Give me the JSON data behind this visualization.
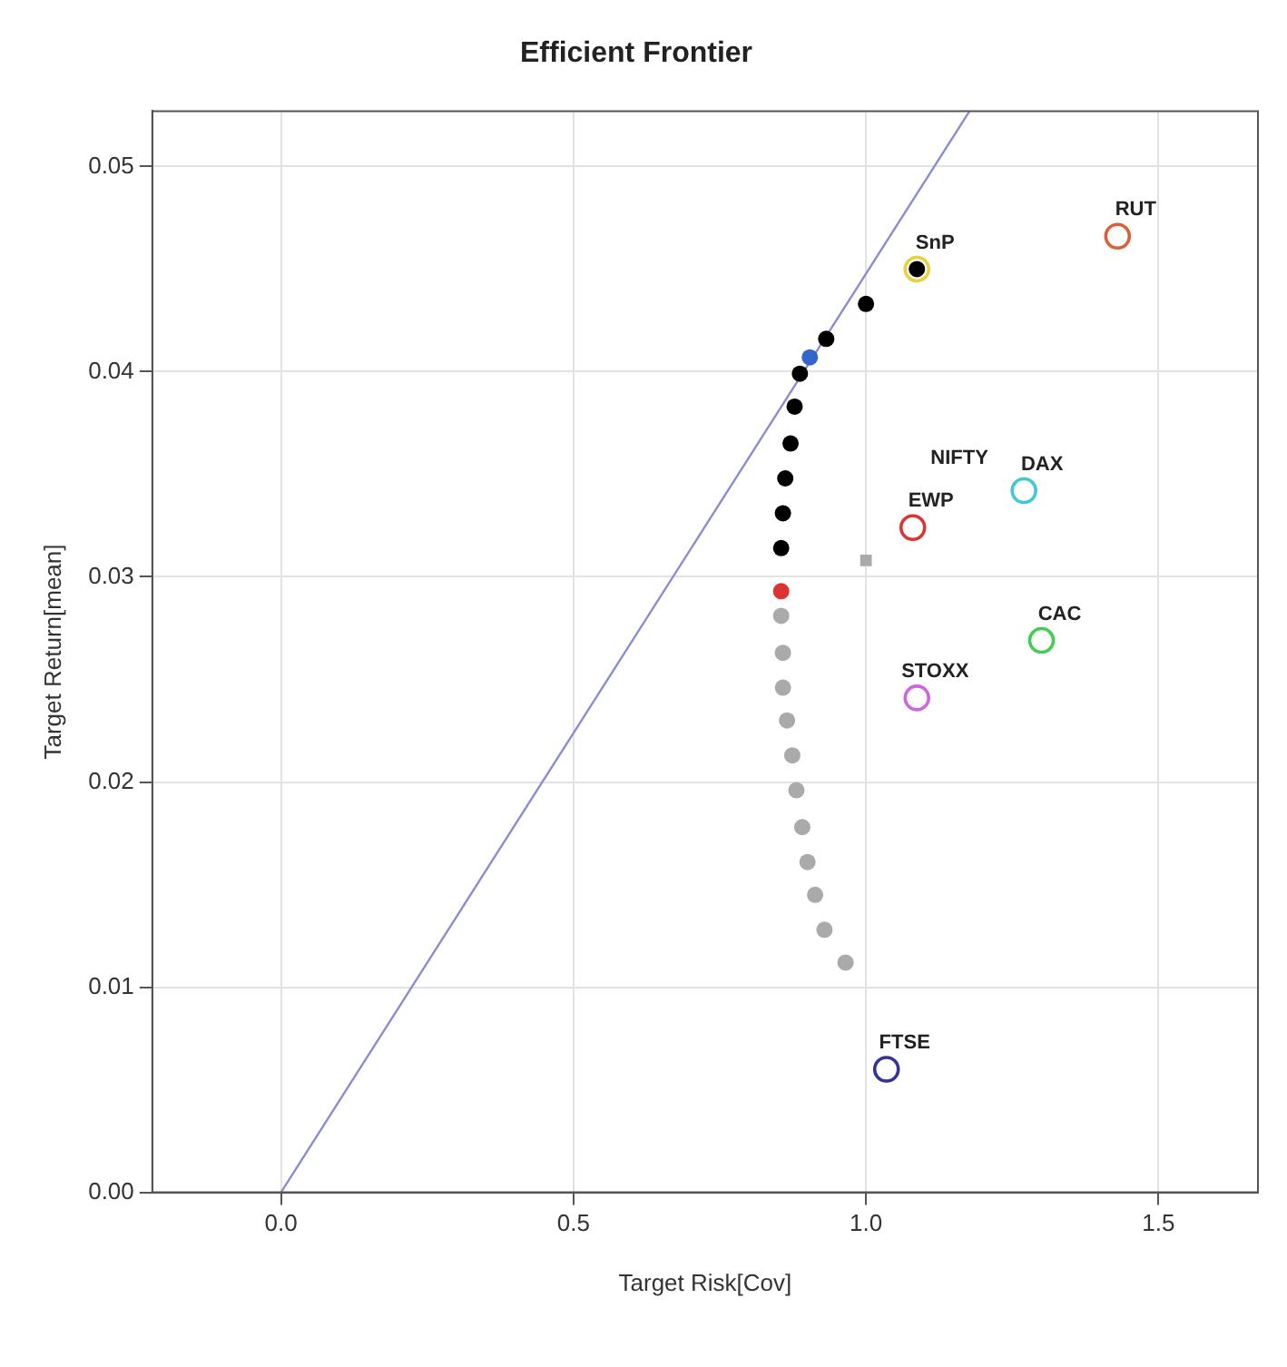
{
  "chart_data": {
    "type": "scatter",
    "title": "Efficient Frontier",
    "xlabel": "Target Risk[Cov]",
    "ylabel": "Target Return[mean]",
    "xlim": [
      -0.22,
      1.67
    ],
    "ylim": [
      0,
      0.0527
    ],
    "xticks": [
      {
        "value": 0,
        "label": "0.0"
      },
      {
        "value": 0.5,
        "label": "0.5"
      },
      {
        "value": 1,
        "label": "1.0"
      },
      {
        "value": 1.5,
        "label": "1.5"
      }
    ],
    "yticks": [
      {
        "value": 0,
        "label": "0.00"
      },
      {
        "value": 0.01,
        "label": "0.01"
      },
      {
        "value": 0.02,
        "label": "0.02"
      },
      {
        "value": 0.03,
        "label": "0.03"
      },
      {
        "value": 0.04,
        "label": "0.04"
      },
      {
        "value": 0.05,
        "label": "0.05"
      }
    ],
    "grid": true,
    "legend": false,
    "marker": "circle",
    "series": [
      {
        "type": "line",
        "marker": "none",
        "color": "#8c8cd0",
        "x": [
          0,
          1.177
        ],
        "values": [
          0,
          0.0527
        ]
      },
      {
        "color": "#aaaaaa",
        "x": [
          0.855,
          0.858,
          0.858,
          0.865,
          0.874,
          0.881,
          0.891,
          0.9,
          0.913,
          0.929,
          0.965
        ],
        "values": [
          0.0281,
          0.0263,
          0.0246,
          0.023,
          0.0213,
          0.0196,
          0.0178,
          0.0161,
          0.0145,
          0.0128,
          0.0112
        ]
      },
      {
        "color": "#3366cc",
        "x": [
          0.904
        ],
        "values": [
          0.0407
        ]
      },
      {
        "color": "#000000",
        "x": [
          0.855,
          0.858,
          0.862,
          0.871,
          0.878,
          0.887,
          0.932,
          1.0,
          1.087
        ],
        "values": [
          0.0314,
          0.0331,
          0.0348,
          0.0365,
          0.0383,
          0.0399,
          0.0416,
          0.0433,
          0.045
        ]
      },
      {
        "color": "#dd3333",
        "x": [
          0.855
        ],
        "values": [
          0.0293
        ]
      },
      {
        "color": "#aaaaaa",
        "marker": "square",
        "x": [
          1.0
        ],
        "values": [
          0.0308
        ]
      },
      {
        "name": "SnP",
        "color": "#e8d040",
        "x": [
          1.087
        ],
        "values": [
          0.045
        ]
      },
      {
        "name": "RUT",
        "color": "#d9603a",
        "x": [
          1.43
        ],
        "values": [
          0.0466
        ]
      },
      {
        "name": "DAX",
        "color": "#40c8d8",
        "x": [
          1.27
        ],
        "values": [
          0.0342
        ]
      },
      {
        "name": "EWP",
        "color": "#dd3333",
        "x": [
          1.08
        ],
        "values": [
          0.0324
        ]
      },
      {
        "name": "CAC",
        "color": "#44cc55",
        "x": [
          1.3
        ],
        "values": [
          0.0269
        ]
      },
      {
        "name": "STOXX",
        "color": "#cc66dd",
        "x": [
          1.087
        ],
        "values": [
          0.0241
        ]
      },
      {
        "name": "FTSE",
        "color": "#333399",
        "x": [
          1.035
        ],
        "values": [
          0.006
        ]
      }
    ],
    "annotations": [
      "NIFTY"
    ]
  }
}
